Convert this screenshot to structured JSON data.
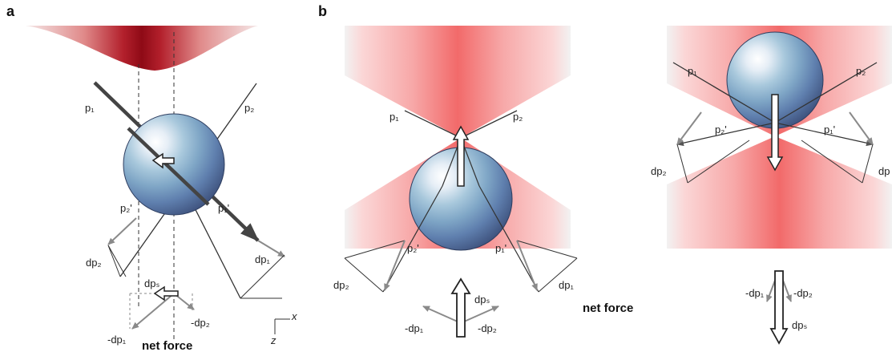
{
  "panel_a": {
    "letter": "a",
    "labels": {
      "p1": "p₁",
      "p2": "p₂",
      "p1_prime": "p₁'",
      "p2_prime": "p₂'",
      "dp1": "dp₁",
      "dp2": "dp₂",
      "dps": "dpₛ",
      "neg_dp1": "-dp₁",
      "neg_dp2": "-dp₂",
      "net_force": "net force",
      "axis_x": "x",
      "axis_z": "z"
    }
  },
  "panel_b": {
    "letter": "b",
    "left": {
      "labels": {
        "p1": "p₁",
        "p2": "p₂",
        "p1_prime": "p₁'",
        "p2_prime": "p₂'",
        "dp1": "dp₁",
        "dp2": "dp₂",
        "dps": "dpₛ",
        "neg_dp1": "-dp₁",
        "neg_dp2": "-dp₂",
        "net_force": "net force"
      }
    },
    "right": {
      "labels": {
        "p1": "p₁",
        "p2": "p₂",
        "p1_prime": "p₁'",
        "p2_prime": "p₂'",
        "dp1": "dp",
        "dp2": "dp₂",
        "dps": "dpₛ",
        "neg_dp1": "-dp₁",
        "neg_dp2": "-dp₂"
      }
    }
  },
  "colors": {
    "laser_dark": "#a0101c",
    "laser_light": "#f7c9c9",
    "sphere_blue": "#5d7fb0",
    "arrow_gray": "#8a8a8a",
    "ray_dark": "#444444"
  }
}
